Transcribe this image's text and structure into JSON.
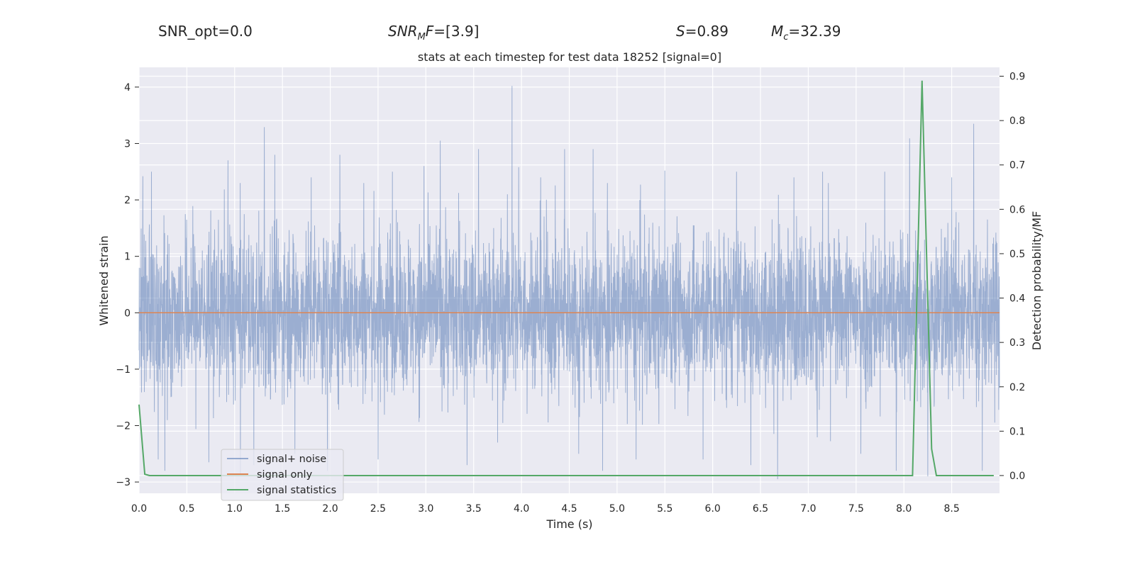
{
  "header": {
    "snr_opt": "SNR_opt=0.0",
    "snr_mf_sym": "SNR",
    "snr_mf_sub": "M",
    "snr_mf_sym2": "F",
    "snr_mf_value": "=[3.9]",
    "s_sym": "S",
    "s_value": "=0.89",
    "mc_sym": "M",
    "mc_sub": "c",
    "mc_value": "=32.39"
  },
  "chart_data": {
    "type": "line",
    "title": "stats at each timestep for test data 18252 [signal=0]",
    "xlabel": "Time (s)",
    "ylabel": "Whitened strain",
    "y2label": "Detection probability/MF",
    "xlim": [
      0.0,
      9.0
    ],
    "ylim": [
      -3.2,
      4.35
    ],
    "y2lim": [
      -0.04,
      0.92
    ],
    "xticks": [
      "0.0",
      "0.5",
      "1.0",
      "1.5",
      "2.0",
      "2.5",
      "3.0",
      "3.5",
      "4.0",
      "4.5",
      "5.0",
      "5.5",
      "6.0",
      "6.5",
      "7.0",
      "7.5",
      "8.0",
      "8.5"
    ],
    "yticks": [
      "4",
      "3",
      "2",
      "1",
      "0",
      "−1",
      "−2",
      "−3"
    ],
    "y2ticks": [
      "0.9",
      "0.8",
      "0.7",
      "0.6",
      "0.5",
      "0.4",
      "0.3",
      "0.2",
      "0.1",
      "0.0"
    ],
    "grid": true,
    "legend_position": "lower-left",
    "colors": {
      "noise": "#4c72b0",
      "signal": "#dd8452",
      "stats": "#55a868",
      "axes_bg": "#eaeaf2"
    },
    "series": [
      {
        "name": "signal+ noise",
        "axis": "left",
        "description_points": [
          [
            0.04,
            2.42
          ],
          [
            0.13,
            2.5
          ],
          [
            0.2,
            -2.6
          ],
          [
            0.27,
            -2.8
          ],
          [
            0.73,
            -2.65
          ],
          [
            0.93,
            2.7
          ],
          [
            1.06,
            -2.9
          ],
          [
            1.2,
            -2.7
          ],
          [
            1.31,
            3.29
          ],
          [
            1.42,
            2.8
          ],
          [
            1.63,
            -2.5
          ],
          [
            1.8,
            2.4
          ],
          [
            1.97,
            -2.8
          ],
          [
            2.1,
            2.8
          ],
          [
            2.35,
            2.3
          ],
          [
            2.5,
            -2.6
          ],
          [
            2.65,
            2.5
          ],
          [
            2.98,
            2.6
          ],
          [
            3.15,
            3.05
          ],
          [
            3.43,
            -2.7
          ],
          [
            3.55,
            2.9
          ],
          [
            3.75,
            -2.3
          ],
          [
            3.9,
            4.02
          ],
          [
            3.97,
            2.58
          ],
          [
            4.2,
            2.4
          ],
          [
            4.45,
            2.9
          ],
          [
            4.6,
            -2.5
          ],
          [
            4.75,
            2.9
          ],
          [
            4.85,
            -2.8
          ],
          [
            4.9,
            2.3
          ],
          [
            5.2,
            -2.6
          ],
          [
            5.5,
            2.52
          ],
          [
            5.9,
            -2.6
          ],
          [
            6.25,
            2.5
          ],
          [
            6.4,
            -2.7
          ],
          [
            6.68,
            -2.95
          ],
          [
            6.85,
            2.4
          ],
          [
            7.15,
            2.5
          ],
          [
            7.55,
            -2.5
          ],
          [
            7.8,
            2.5
          ],
          [
            7.92,
            -2.8
          ],
          [
            8.06,
            3.09
          ],
          [
            8.25,
            -2.9
          ],
          [
            8.5,
            2.4
          ],
          [
            8.73,
            3.35
          ],
          [
            8.82,
            -2.8
          ]
        ]
      },
      {
        "name": "signal only",
        "axis": "left",
        "x": [
          0.0,
          9.0
        ],
        "y": [
          0.0,
          0.0
        ]
      },
      {
        "name": "signal statistics",
        "axis": "right",
        "x": [
          0.0,
          0.06,
          0.11,
          0.2,
          8.04,
          8.09,
          8.19,
          8.29,
          8.34,
          8.94
        ],
        "y": [
          0.16,
          0.003,
          0.0,
          0.0,
          0.0,
          0.0,
          0.89,
          0.06,
          0.0,
          0.0
        ]
      }
    ]
  }
}
